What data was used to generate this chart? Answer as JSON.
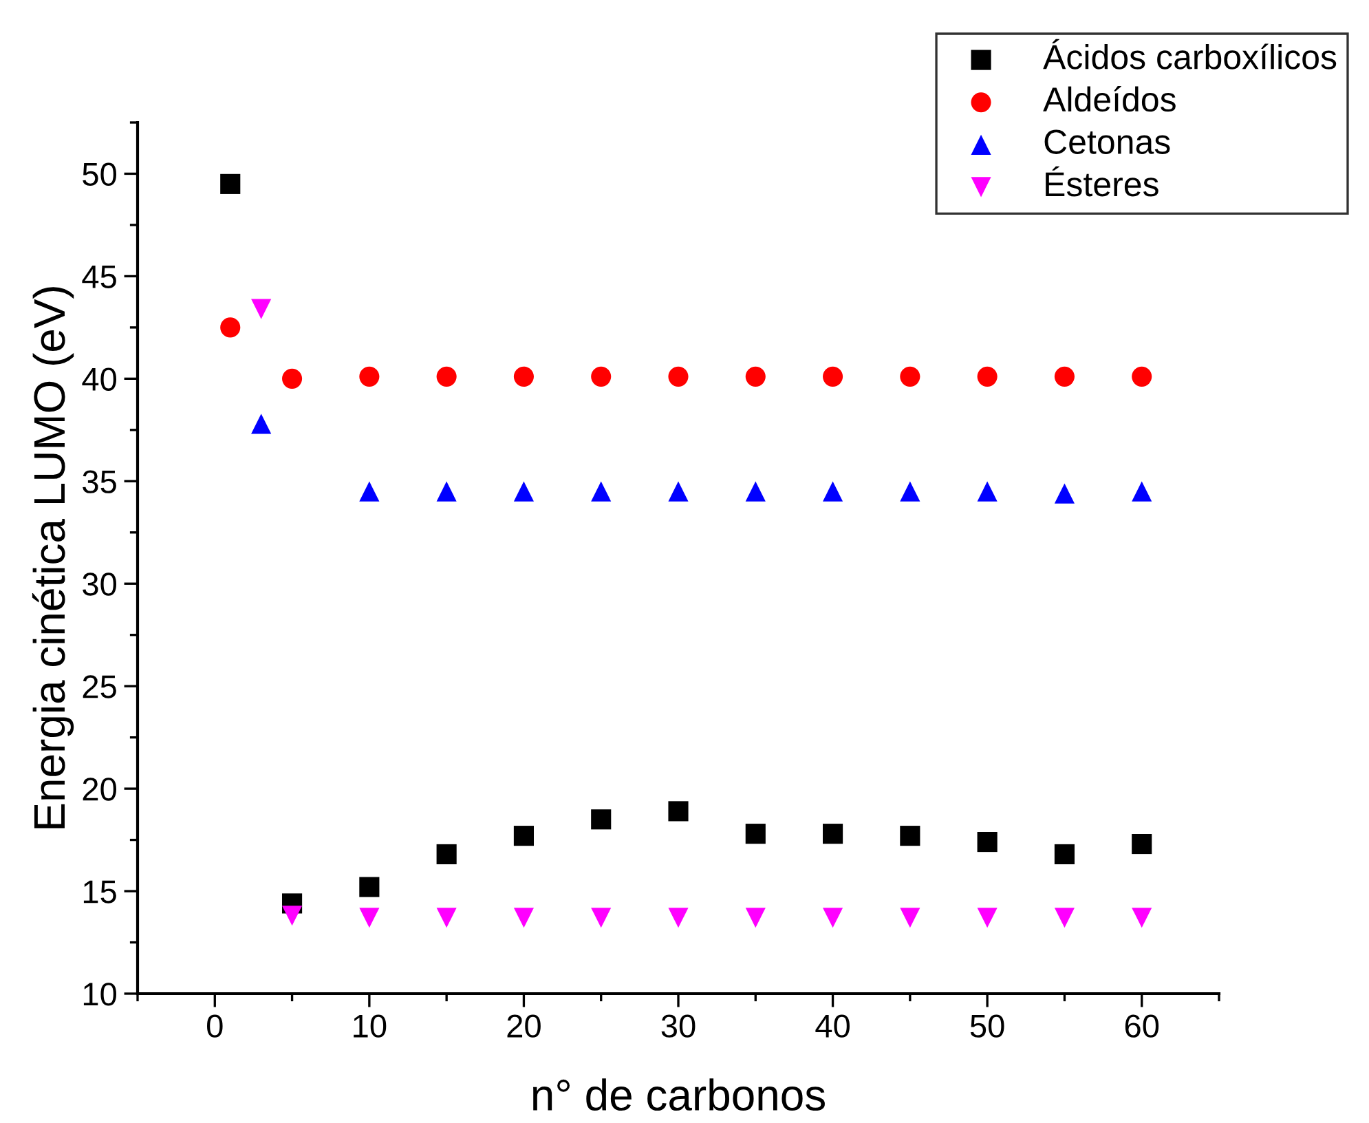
{
  "chart_data": {
    "type": "scatter",
    "xlabel": "n° de carbonos",
    "ylabel": "Energia cinética LUMO (eV)",
    "xlim": [
      -5,
      65
    ],
    "xticks": [
      0,
      10,
      20,
      30,
      40,
      50,
      60
    ],
    "ylim": [
      10,
      52.5
    ],
    "yticks": [
      10,
      15,
      20,
      25,
      30,
      35,
      40,
      45,
      50
    ],
    "grid": false,
    "legend": "top right",
    "series": [
      {
        "name": "Ácidos carboxílicos",
        "color": "#000000",
        "marker": "square",
        "x": [
          1,
          5,
          10,
          15,
          20,
          25,
          30,
          35,
          40,
          45,
          50,
          55,
          60
        ],
        "values": [
          49.5,
          14.4,
          15.2,
          16.8,
          17.7,
          18.5,
          18.9,
          17.8,
          17.8,
          17.7,
          17.4,
          16.8,
          17.3
        ]
      },
      {
        "name": "Aldeídos",
        "color": "#ff0000",
        "marker": "circle",
        "x": [
          1,
          5,
          10,
          15,
          20,
          25,
          30,
          35,
          40,
          45,
          50,
          55,
          60
        ],
        "values": [
          42.5,
          40.0,
          40.1,
          40.1,
          40.1,
          40.1,
          40.1,
          40.1,
          40.1,
          40.1,
          40.1,
          40.1,
          40.1
        ]
      },
      {
        "name": "Cetonas",
        "color": "#0000ff",
        "marker": "triangle",
        "x": [
          3,
          10,
          15,
          20,
          25,
          30,
          35,
          40,
          45,
          50,
          55,
          60
        ],
        "values": [
          37.8,
          34.5,
          34.5,
          34.5,
          34.5,
          34.5,
          34.5,
          34.5,
          34.5,
          34.5,
          34.4,
          34.5
        ]
      },
      {
        "name": "Ésteres",
        "color": "#ff00ff",
        "marker": "triangle_down",
        "x": [
          3,
          5,
          10,
          15,
          20,
          25,
          30,
          35,
          40,
          45,
          50,
          55,
          60
        ],
        "values": [
          43.4,
          13.8,
          13.7,
          13.7,
          13.7,
          13.7,
          13.7,
          13.7,
          13.7,
          13.7,
          13.7,
          13.7,
          13.7
        ]
      }
    ]
  }
}
